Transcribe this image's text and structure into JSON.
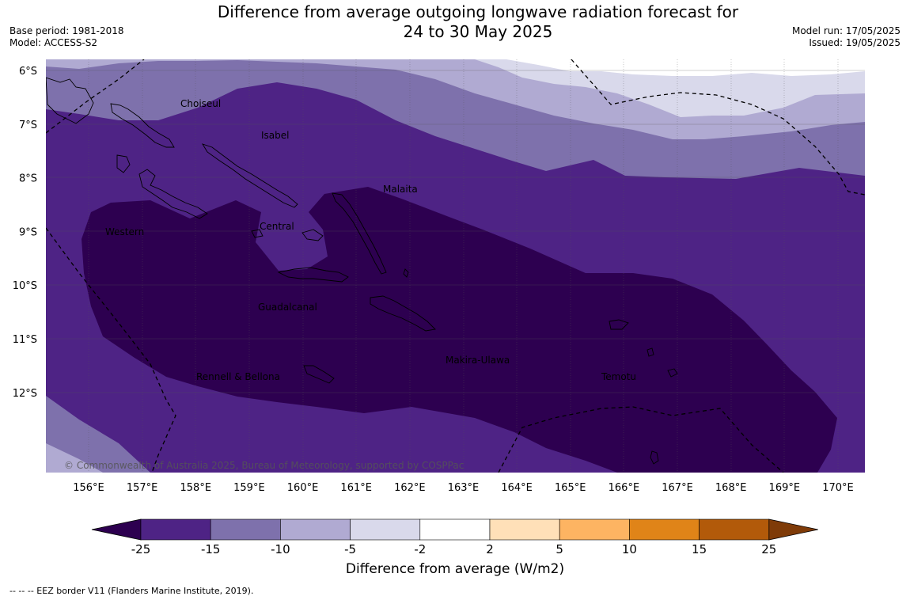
{
  "title_line1": "Difference from average outgoing longwave radiation forecast for",
  "title_line2": "24 to 30 May 2025",
  "base_period": "Base period: 1981-2018",
  "model": "Model: ACCESS-S2",
  "model_run": "Model run: 17/05/2025",
  "issued": "Issued: 19/05/2025",
  "copyright": "© Commonwealth of Australia 2025, Bureau of Meteorology, supported by COSPPac",
  "lat_labels": [
    "6°S",
    "7°S",
    "8°S",
    "9°S",
    "10°S",
    "11°S",
    "12°S"
  ],
  "lon_labels": [
    "156°E",
    "157°E",
    "158°E",
    "159°E",
    "160°E",
    "161°E",
    "162°E",
    "163°E",
    "164°E",
    "165°E",
    "166°E",
    "167°E",
    "168°E",
    "169°E",
    "170°E"
  ],
  "provinces": [
    "Choiseul",
    "Isabel",
    "Malaita",
    "Western",
    "Central",
    "Guadalcanal",
    "Makira-Ulawa",
    "Rennell & Bellona",
    "Temotu"
  ],
  "colorbar": {
    "ticks": [
      "-25",
      "-15",
      "-10",
      "-5",
      "-2",
      "2",
      "5",
      "10",
      "15",
      "25"
    ],
    "colors": [
      "#2d0050",
      "#4e2385",
      "#7e71ac",
      "#b0aad2",
      "#d9d9eb",
      "#ffffff",
      "#ffe0b8",
      "#fdb462",
      "#e08418",
      "#b25a0a",
      "#7f3b08"
    ],
    "label": "Difference from average (W/m2)"
  },
  "footer_legend": "--  --  -- EEZ border V11 (Flanders Marine Institute, 2019)."
}
